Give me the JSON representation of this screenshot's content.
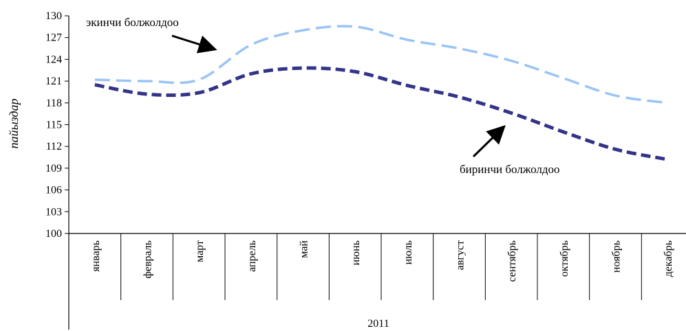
{
  "chart_data": {
    "type": "line",
    "title": "",
    "ylabel": "пайыздар",
    "xlabel": "2011",
    "ylim": [
      100,
      130
    ],
    "yticks": [
      100,
      103,
      106,
      109,
      112,
      115,
      118,
      121,
      124,
      127,
      130
    ],
    "categories": [
      "январь",
      "февраль",
      "март",
      "апрель",
      "май",
      "июнь",
      "июль",
      "август",
      "сентябрь",
      "октябрь",
      "ноябрь",
      "декабрь"
    ],
    "series": [
      {
        "name": "биринчи болжолдоо",
        "color": "#333388",
        "values": [
          120.5,
          119.2,
          119.4,
          122.0,
          122.8,
          122.3,
          120.4,
          118.8,
          116.6,
          114.0,
          111.6,
          110.2
        ]
      },
      {
        "name": "экинчи болжолдоо",
        "color": "#99c4f5",
        "values": [
          121.2,
          121.0,
          121.2,
          126.0,
          128.0,
          128.5,
          126.7,
          125.5,
          123.8,
          121.4,
          119.0,
          118.0
        ]
      }
    ],
    "grid": false,
    "legend": "annotations"
  }
}
